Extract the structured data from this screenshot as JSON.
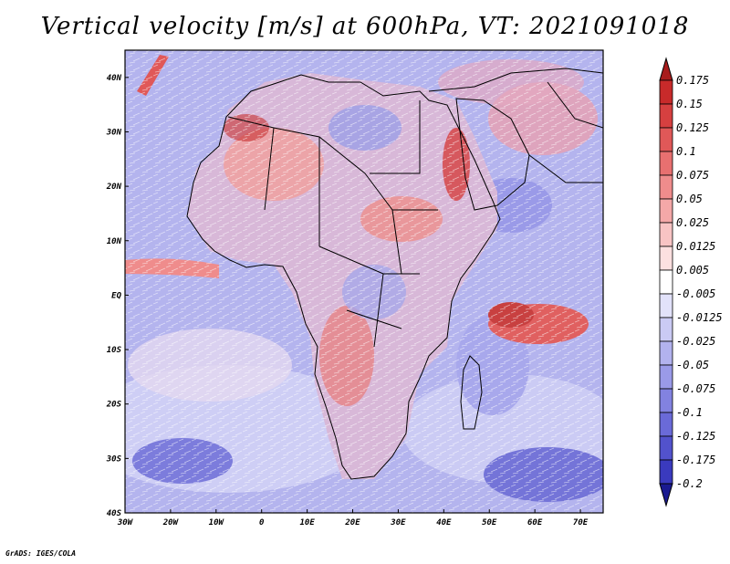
{
  "title": "Vertical velocity [m/s] at 600hPa, VT: 2021091018",
  "credit": "GrADS: IGES/COLA",
  "map": {
    "lon_range": [
      -30,
      75
    ],
    "lat_range": [
      -40,
      45
    ],
    "x_ticks": [
      {
        "lon": -30,
        "label": "30W"
      },
      {
        "lon": -20,
        "label": "20W"
      },
      {
        "lon": -10,
        "label": "10W"
      },
      {
        "lon": 0,
        "label": "0"
      },
      {
        "lon": 10,
        "label": "10E"
      },
      {
        "lon": 20,
        "label": "20E"
      },
      {
        "lon": 30,
        "label": "30E"
      },
      {
        "lon": 40,
        "label": "40E"
      },
      {
        "lon": 50,
        "label": "50E"
      },
      {
        "lon": 60,
        "label": "60E"
      },
      {
        "lon": 70,
        "label": "70E"
      }
    ],
    "y_ticks": [
      {
        "lat": 40,
        "label": "40N"
      },
      {
        "lat": 30,
        "label": "30N"
      },
      {
        "lat": 20,
        "label": "20N"
      },
      {
        "lat": 10,
        "label": "10N"
      },
      {
        "lat": 0,
        "label": "EQ"
      },
      {
        "lat": -10,
        "label": "10S"
      },
      {
        "lat": -20,
        "label": "20S"
      },
      {
        "lat": -30,
        "label": "30S"
      },
      {
        "lat": -40,
        "label": "40S"
      }
    ]
  },
  "colorbar": {
    "levels": [
      {
        "label": "0.175",
        "color": "#c82a2a"
      },
      {
        "label": "0.15",
        "color": "#d64040"
      },
      {
        "label": "0.125",
        "color": "#e05858"
      },
      {
        "label": "0.1",
        "color": "#e87070"
      },
      {
        "label": "0.075",
        "color": "#ef8c8c"
      },
      {
        "label": "0.05",
        "color": "#f4a8a8"
      },
      {
        "label": "0.025",
        "color": "#f8c4c4"
      },
      {
        "label": "0.0125",
        "color": "#fce0e0"
      },
      {
        "label": "0.005",
        "color": "#ffffff"
      },
      {
        "label": "-0.005",
        "color": "#e2e2fa"
      },
      {
        "label": "-0.0125",
        "color": "#cacaf4"
      },
      {
        "label": "-0.025",
        "color": "#b2b2ee"
      },
      {
        "label": "-0.05",
        "color": "#9a9ae8"
      },
      {
        "label": "-0.075",
        "color": "#8282e0"
      },
      {
        "label": "-0.1",
        "color": "#6a6ad8"
      },
      {
        "label": "-0.125",
        "color": "#5252cc"
      },
      {
        "label": "-0.175",
        "color": "#3a3abe"
      },
      {
        "label": "-0.2",
        "color": "#2424a8"
      }
    ],
    "top_arrow_color": "#a81c1c",
    "bottom_arrow_color": "#1a1a90"
  }
}
